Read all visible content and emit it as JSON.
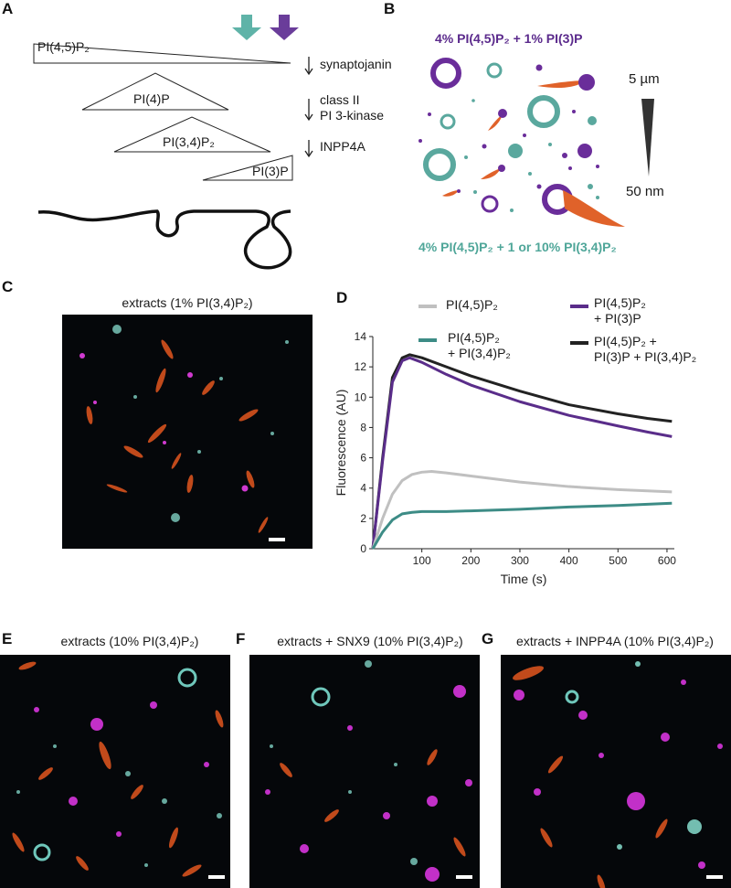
{
  "panels": {
    "a": {
      "letter": "A",
      "triangle_labels": [
        "PI(4,5)P₂",
        "PI(4)P",
        "PI(3,4)P₂",
        "PI(3)P"
      ],
      "enzymes": [
        "synaptojanin",
        "class II\nPI 3-kinase",
        "INPP4A"
      ],
      "arrow_colors": {
        "teal": "#5fb3a8",
        "purple": "#6a3d9a"
      }
    },
    "b": {
      "letter": "B",
      "top_label": "4% PI(4,5)P₂ + 1% PI(3)P",
      "bottom_label": "4% PI(4,5)P₂ + 1 or 10% PI(3,4)P₂",
      "scale_top": "5 µm",
      "scale_bottom": "50 nm",
      "colors": {
        "purple": "#6a2d9a",
        "teal": "#5aa89e",
        "orange": "#e0622a"
      }
    },
    "c": {
      "letter": "C",
      "title": "extracts (1% PI(3,4)P₂)"
    },
    "d": {
      "letter": "D",
      "legend": [
        {
          "label": "PI(4,5)P₂",
          "color": "#c0c0c0"
        },
        {
          "label": "PI(4,5)P₂\n+ PI(3)P",
          "color": "#5a2d8a"
        },
        {
          "label": "PI(4,5)P₂\n+ PI(3,4)P₂",
          "color": "#3d8c86"
        },
        {
          "label": "PI(4,5)P₂ +\nPI(3)P + PI(3,4)P₂",
          "color": "#222222"
        }
      ]
    },
    "e": {
      "letter": "E",
      "title": "extracts (10% PI(3,4)P₂)"
    },
    "f": {
      "letter": "F",
      "title": "extracts + SNX9 (10% PI(3,4)P₂)"
    },
    "g": {
      "letter": "G",
      "title": "extracts + INPP4A (10% PI(3,4)P₂)"
    }
  },
  "chart_data": {
    "type": "line",
    "xlabel": "Time (s)",
    "ylabel": "Fluorescence (AU)",
    "xlim": [
      0,
      615
    ],
    "ylim": [
      0,
      14
    ],
    "xticks": [
      100,
      200,
      300,
      400,
      500,
      600
    ],
    "yticks": [
      0,
      2,
      4,
      6,
      8,
      10,
      12,
      14
    ],
    "grid": false,
    "legend_position": "top",
    "series": [
      {
        "name": "PI(4,5)P₂ + PI(3)P + PI(3,4)P₂",
        "color": "#222222",
        "x": [
          0,
          20,
          40,
          60,
          75,
          100,
          150,
          200,
          300,
          400,
          500,
          560,
          610
        ],
        "y": [
          0,
          6.0,
          11.3,
          12.6,
          12.8,
          12.6,
          12.0,
          11.4,
          10.4,
          9.5,
          8.9,
          8.6,
          8.4
        ]
      },
      {
        "name": "PI(4,5)P₂ + PI(3)P",
        "color": "#5a2d8a",
        "x": [
          0,
          20,
          40,
          60,
          75,
          100,
          150,
          200,
          300,
          400,
          500,
          560,
          610
        ],
        "y": [
          0,
          5.8,
          11.0,
          12.4,
          12.6,
          12.3,
          11.5,
          10.8,
          9.7,
          8.8,
          8.1,
          7.7,
          7.4
        ]
      },
      {
        "name": "PI(4,5)P₂",
        "color": "#c0c0c0",
        "x": [
          0,
          20,
          40,
          60,
          80,
          100,
          120,
          150,
          200,
          300,
          400,
          500,
          610
        ],
        "y": [
          0,
          2.0,
          3.6,
          4.5,
          4.9,
          5.05,
          5.1,
          5.0,
          4.8,
          4.4,
          4.1,
          3.9,
          3.75
        ]
      },
      {
        "name": "PI(4,5)P₂ + PI(3,4)P₂",
        "color": "#3d8c86",
        "x": [
          0,
          20,
          40,
          60,
          80,
          100,
          150,
          200,
          300,
          400,
          500,
          610
        ],
        "y": [
          0,
          1.1,
          1.9,
          2.3,
          2.4,
          2.45,
          2.45,
          2.5,
          2.6,
          2.75,
          2.85,
          3.0
        ]
      }
    ]
  }
}
